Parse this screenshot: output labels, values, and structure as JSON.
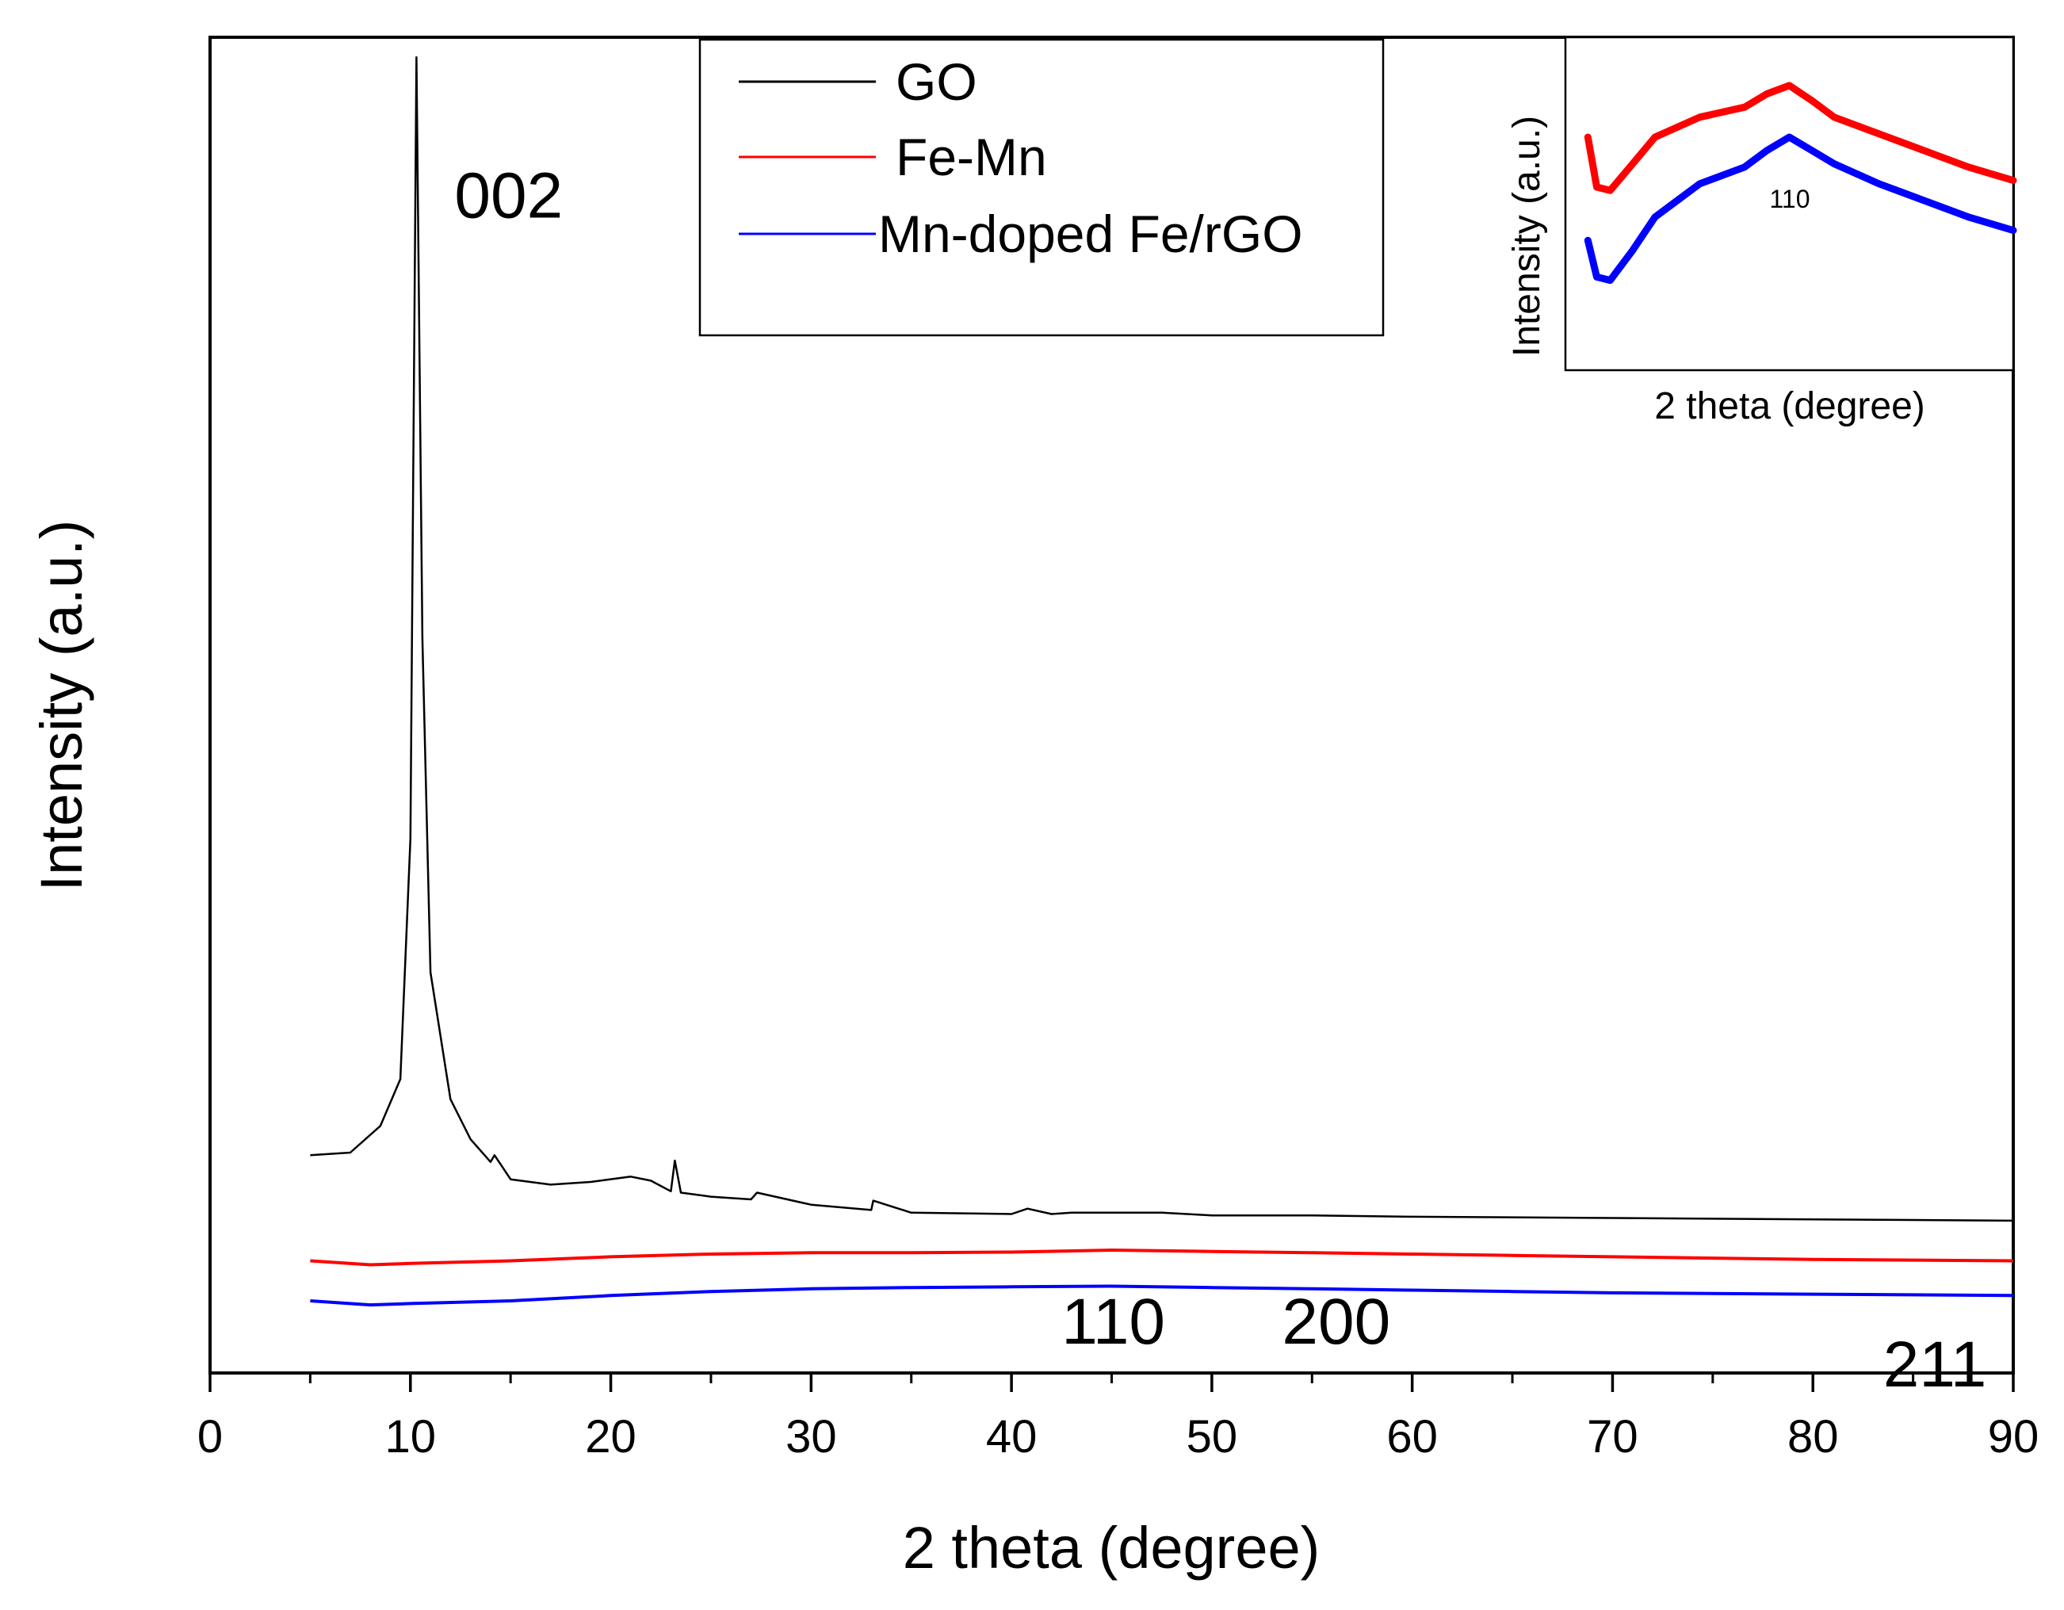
{
  "chart_data": {
    "type": "line",
    "title": "",
    "xlabel": "2 theta (degree)",
    "ylabel": "Intensity (a.u.)",
    "xlim": [
      0,
      90
    ],
    "ylim": [
      0,
      100
    ],
    "xticks": [
      0,
      10,
      20,
      30,
      40,
      50,
      60,
      70,
      80,
      90
    ],
    "xtick_labels": [
      "0",
      "10",
      "20",
      "30",
      "40",
      "50",
      "60",
      "70",
      "80",
      "90"
    ],
    "yticks_shown": false,
    "grid": false,
    "legend": {
      "position": "top-center",
      "entries": [
        "GO",
        "Fe-Mn",
        "Mn-doped Fe/rGO"
      ]
    },
    "series": [
      {
        "name": "GO",
        "color": "#000000",
        "x": [
          5,
          7,
          8.5,
          9.5,
          10,
          10.3,
          10.6,
          11,
          12,
          13,
          14,
          14.2,
          15,
          17,
          19,
          21,
          22,
          23,
          23.2,
          23.5,
          25,
          27,
          27.3,
          30,
          33,
          33.1,
          35,
          40,
          40.8,
          42,
          43,
          44,
          47.5,
          50,
          55,
          60,
          70,
          80,
          90
        ],
        "y": [
          16.3,
          16.5,
          18.5,
          22,
          40,
          98.5,
          55,
          30,
          20.5,
          17.5,
          15.8,
          16.3,
          14.5,
          14.1,
          14.3,
          14.7,
          14.4,
          13.6,
          15.9,
          13.5,
          13.2,
          13,
          13.5,
          12.6,
          12.2,
          12.9,
          12,
          11.9,
          12.3,
          11.9,
          12,
          12,
          12,
          11.8,
          11.8,
          11.7,
          11.6,
          11.5,
          11.4
        ]
      },
      {
        "name": "Fe-Mn",
        "color": "#ff0000",
        "x": [
          5,
          8,
          10,
          15,
          20,
          25,
          30,
          35,
          40,
          45,
          50,
          55,
          60,
          65,
          70,
          75,
          80,
          85,
          90
        ],
        "y": [
          8.4,
          8.1,
          8.2,
          8.4,
          8.7,
          8.9,
          9,
          9,
          9.05,
          9.2,
          9.1,
          9,
          8.9,
          8.8,
          8.7,
          8.6,
          8.5,
          8.45,
          8.4
        ]
      },
      {
        "name": "Mn-doped Fe/rGO",
        "color": "#0000ff",
        "x": [
          5,
          8,
          10,
          15,
          20,
          25,
          30,
          35,
          40,
          45,
          50,
          55,
          60,
          65,
          70,
          75,
          80,
          85,
          90
        ],
        "y": [
          5.4,
          5.1,
          5.2,
          5.4,
          5.8,
          6.1,
          6.3,
          6.4,
          6.45,
          6.5,
          6.4,
          6.3,
          6.2,
          6.1,
          6,
          5.95,
          5.9,
          5.85,
          5.8
        ]
      }
    ],
    "annotations": [
      {
        "text": "002",
        "x": 12.2,
        "y": 86.5
      },
      {
        "text": "110",
        "x": 42.5,
        "y": 2.2
      },
      {
        "text": "200",
        "x": 53.5,
        "y": 2.2
      },
      {
        "text": "211",
        "x": 83.5,
        "y": -1
      }
    ],
    "inset": {
      "xlabel": "2 theta (degree)",
      "ylabel": "Intensity (a.u.)",
      "peak_label": "110",
      "xlim": [
        0,
        10
      ],
      "ylim": [
        0,
        10
      ],
      "series": [
        {
          "name": "Fe-Mn",
          "color": "#ff0000",
          "x": [
            0.5,
            0.7,
            1,
            1.5,
            2,
            3,
            4,
            4.5,
            5,
            5.5,
            6,
            7,
            8,
            9,
            10
          ],
          "y": [
            7,
            5.5,
            5.4,
            6.2,
            7,
            7.6,
            7.9,
            8.3,
            8.55,
            8.1,
            7.6,
            7.1,
            6.6,
            6.1,
            5.7
          ]
        },
        {
          "name": "Mn-doped Fe/rGO",
          "color": "#0000ff",
          "x": [
            0.5,
            0.7,
            1,
            1.5,
            2,
            3,
            4,
            4.5,
            5,
            5.5,
            6,
            7,
            8,
            9,
            10
          ],
          "y": [
            3.9,
            2.8,
            2.7,
            3.6,
            4.6,
            5.6,
            6.1,
            6.6,
            7,
            6.6,
            6.2,
            5.6,
            5.1,
            4.6,
            4.2
          ]
        }
      ]
    }
  }
}
